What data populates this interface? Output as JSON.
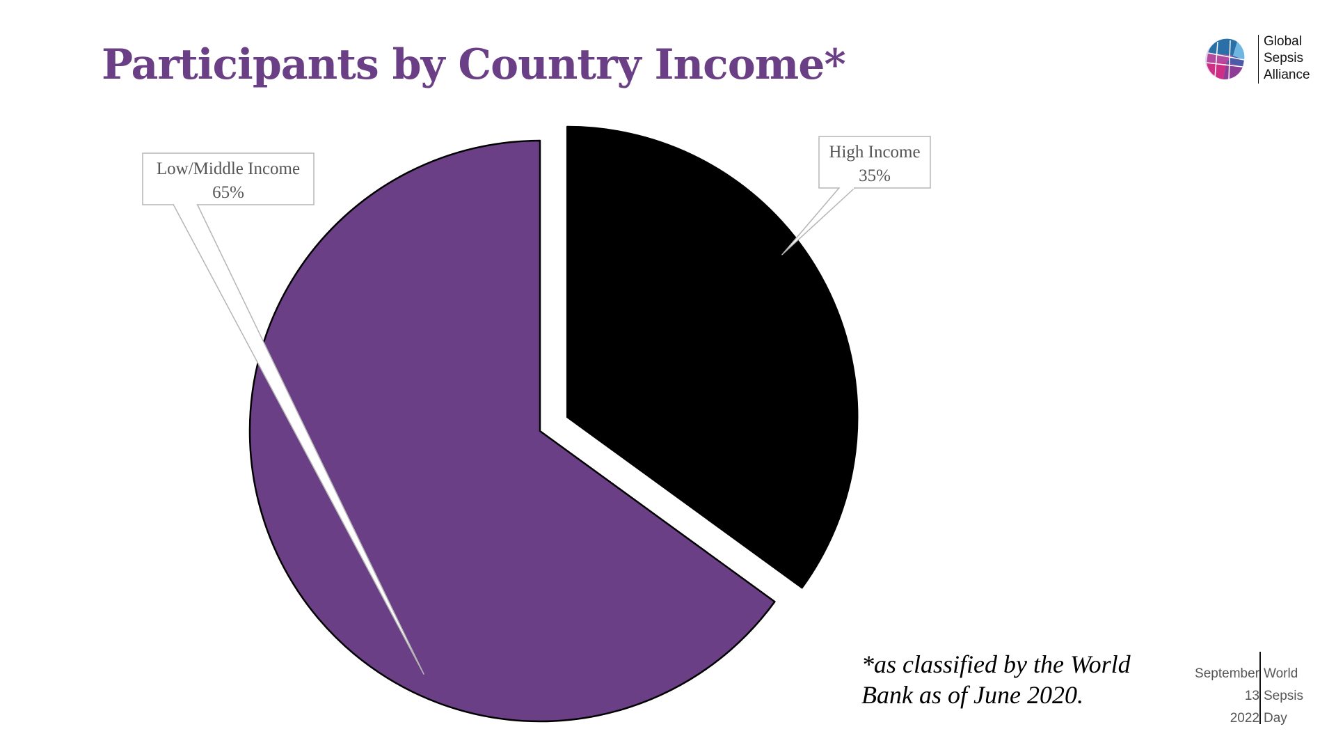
{
  "chart_data": {
    "type": "pie",
    "title": "Participants by Country Income*",
    "slices": [
      {
        "label": "High Income",
        "percent_label": "35%",
        "value": 35,
        "color": "#000000",
        "exploded": true
      },
      {
        "label": "Low/Middle Income",
        "percent_label": "65%",
        "value": 65,
        "color": "#6b3f86",
        "exploded": false
      }
    ]
  },
  "footnote": {
    "line1": "*as classified by the World",
    "line2": "Bank as of June 2020."
  },
  "logo": {
    "line1": "Global",
    "line2": "Sepsis",
    "line3": "Alliance"
  },
  "event": {
    "left": [
      "September",
      "13",
      "2022"
    ],
    "right": [
      "World",
      "Sepsis",
      "Day"
    ]
  },
  "colors": {
    "title": "#6b3f86",
    "low_middle": "#6b3f86",
    "high": "#000000"
  }
}
